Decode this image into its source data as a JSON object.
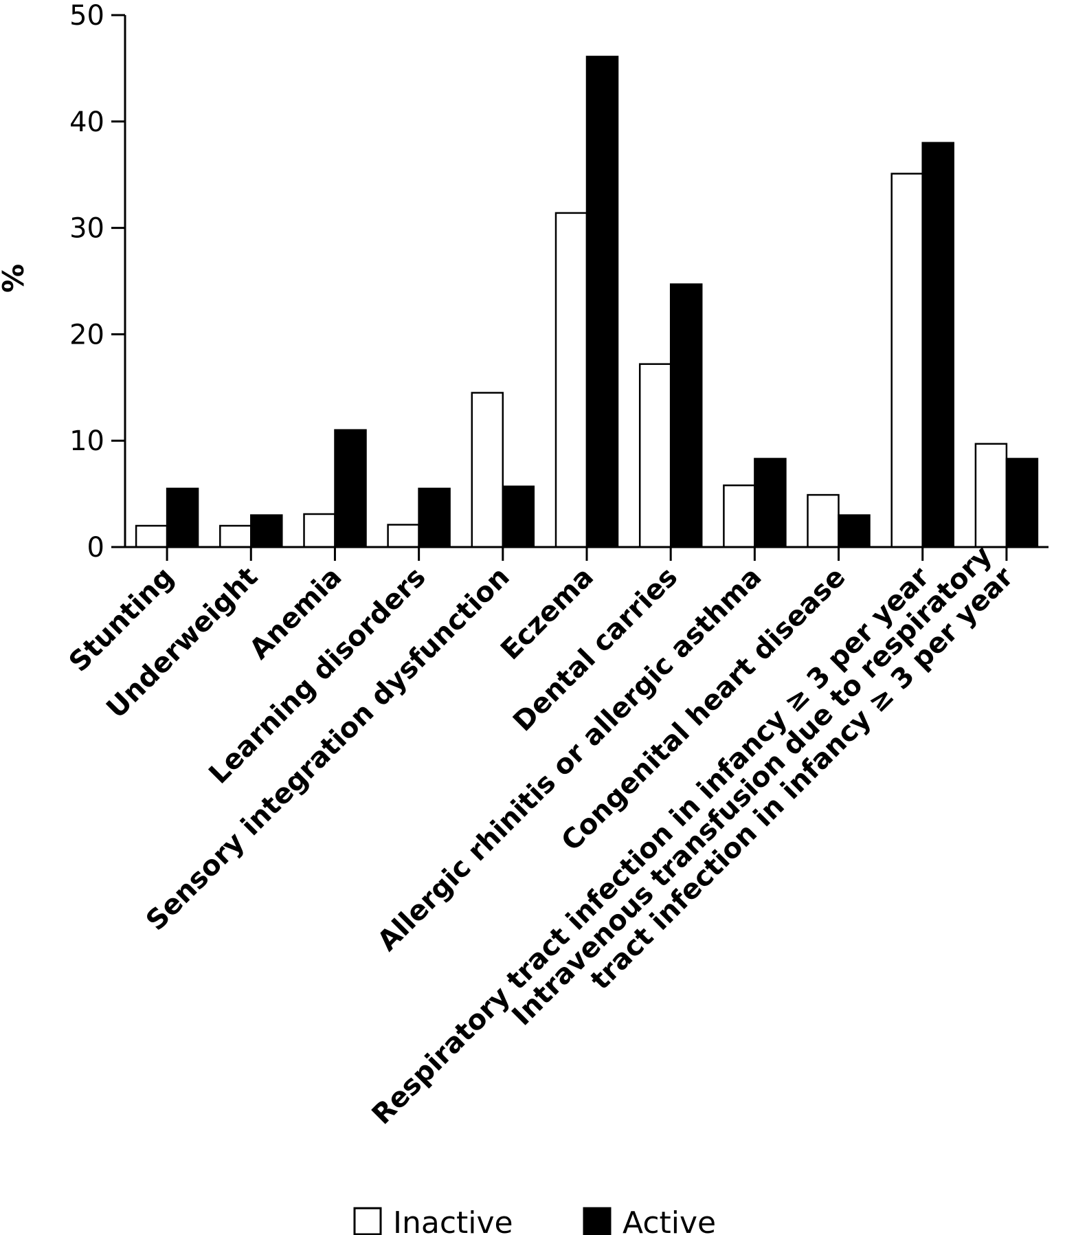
{
  "chart_data": {
    "type": "bar",
    "ylabel": "%",
    "ylim": [
      0,
      50
    ],
    "yticks": [
      "0",
      "10",
      "20",
      "30",
      "40",
      "50"
    ],
    "grid": false,
    "legend_position": "bottom",
    "categories": [
      [
        "Stunting"
      ],
      [
        "Underweight"
      ],
      [
        "Anemia"
      ],
      [
        "Learning disorders"
      ],
      [
        "Sensory integration dysfunction"
      ],
      [
        "Eczema"
      ],
      [
        "Dental carries"
      ],
      [
        "Allergic rhinitis or allergic asthma"
      ],
      [
        "Congenital heart disease"
      ],
      [
        "Respiratory tract infection in infancy ≥ 3 per year"
      ],
      [
        "Intravenous transfusion due to respiratory",
        "tract infection in infancy ≥ 3 per year"
      ]
    ],
    "series": [
      {
        "name": "Inactive",
        "color": "#ffffff",
        "values": [
          2.0,
          2.0,
          3.1,
          2.1,
          14.5,
          31.4,
          17.2,
          5.8,
          4.9,
          35.1,
          9.7
        ]
      },
      {
        "name": "Active",
        "color": "#000000",
        "values": [
          5.5,
          3.0,
          11.0,
          5.5,
          5.7,
          46.1,
          24.7,
          8.3,
          3.0,
          38.0,
          8.3
        ]
      }
    ]
  }
}
